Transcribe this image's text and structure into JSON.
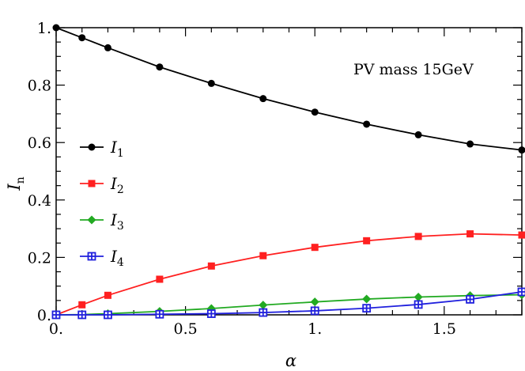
{
  "chart_data": {
    "type": "line",
    "title": "",
    "xlabel": "α",
    "ylabel_main": "I",
    "ylabel_sub": "n",
    "annotation": "PV mass 15GeV",
    "xlim": [
      0,
      1.8
    ],
    "ylim": [
      0,
      1.0
    ],
    "xticks": [
      0,
      0.5,
      1.0,
      1.5
    ],
    "xtick_labels": [
      "0.",
      "0.5",
      "1.",
      "1.5"
    ],
    "yticks": [
      0,
      0.2,
      0.4,
      0.6,
      0.8,
      1.0
    ],
    "ytick_labels": [
      "0.",
      "0.2",
      "0.4",
      "0.6",
      "0.8",
      "1."
    ],
    "grid": false,
    "legend_position": "center-left",
    "series": [
      {
        "name": "1",
        "color": "#000000",
        "marker": "circle",
        "x": [
          0,
          0.1,
          0.2,
          0.4,
          0.6,
          0.8,
          1.0,
          1.2,
          1.4,
          1.6,
          1.8
        ],
        "y": [
          1.0,
          0.965,
          0.93,
          0.863,
          0.806,
          0.753,
          0.706,
          0.664,
          0.627,
          0.595,
          0.574
        ]
      },
      {
        "name": "2",
        "color": "#ff2020",
        "marker": "square",
        "x": [
          0,
          0.1,
          0.2,
          0.4,
          0.6,
          0.8,
          1.0,
          1.2,
          1.4,
          1.6,
          1.8
        ],
        "y": [
          0.0,
          0.035,
          0.068,
          0.124,
          0.17,
          0.206,
          0.235,
          0.258,
          0.273,
          0.282,
          0.278
        ]
      },
      {
        "name": "3",
        "color": "#22aa22",
        "marker": "diamond",
        "x": [
          0,
          0.1,
          0.2,
          0.4,
          0.6,
          0.8,
          1.0,
          1.2,
          1.4,
          1.6,
          1.8
        ],
        "y": [
          0.0,
          0.001,
          0.004,
          0.012,
          0.022,
          0.034,
          0.045,
          0.055,
          0.062,
          0.067,
          0.07
        ]
      },
      {
        "name": "4",
        "color": "#2020dd",
        "marker": "cross-square",
        "x": [
          0,
          0.1,
          0.2,
          0.4,
          0.6,
          0.8,
          1.0,
          1.2,
          1.4,
          1.6,
          1.8
        ],
        "y": [
          0.0,
          0.0,
          0.0,
          0.002,
          0.004,
          0.008,
          0.014,
          0.023,
          0.036,
          0.054,
          0.08
        ]
      }
    ]
  }
}
